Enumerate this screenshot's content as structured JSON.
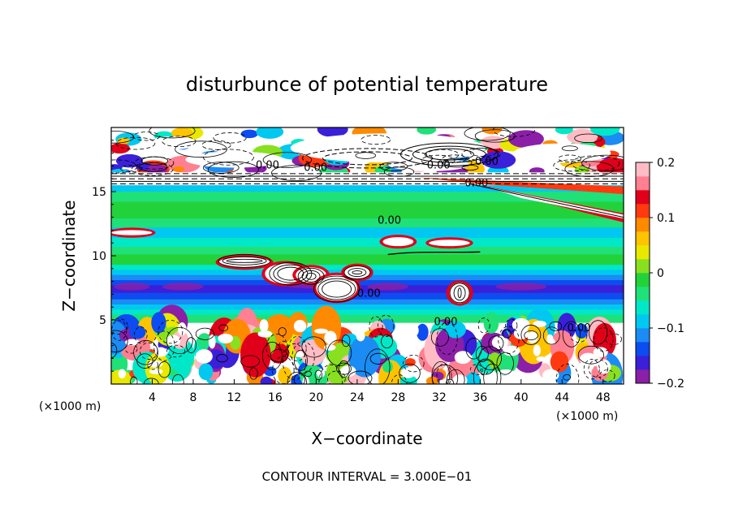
{
  "chart_data": {
    "type": "heatmap",
    "title": "disturbunce of potential temperature",
    "xlabel": "X−coordinate",
    "ylabel": "Z−coordinate",
    "x_unit": "(×1000 m)",
    "z_unit": "(×1000 m)",
    "xlim": [
      0,
      50
    ],
    "ylim": [
      0,
      20
    ],
    "x_ticks": [
      4,
      8,
      12,
      16,
      20,
      24,
      28,
      32,
      36,
      40,
      44,
      48
    ],
    "y_ticks": [
      5,
      10,
      15
    ],
    "colorbar": {
      "range": [
        -0.2,
        0.2
      ],
      "ticks": [
        "0.2",
        "0.1",
        "0",
        "−0.1",
        "−0.2"
      ],
      "colors": [
        "#8b1fa8",
        "#3a20d8",
        "#0d4cf0",
        "#1a8cf4",
        "#00c8f0",
        "#00e8c8",
        "#20e078",
        "#22d23a",
        "#88e020",
        "#e8e800",
        "#ffc400",
        "#ff8a00",
        "#ff3a10",
        "#e0001a",
        "#ff8090",
        "#ffbcc4"
      ]
    },
    "contour_labels": [
      "0.00",
      "0.00",
      "0.00",
      "0.00",
      "0.00",
      "0.00",
      "0.00",
      "0.00",
      "0.00"
    ],
    "footer": "CONTOUR INTERVAL = 3.000E−01"
  }
}
